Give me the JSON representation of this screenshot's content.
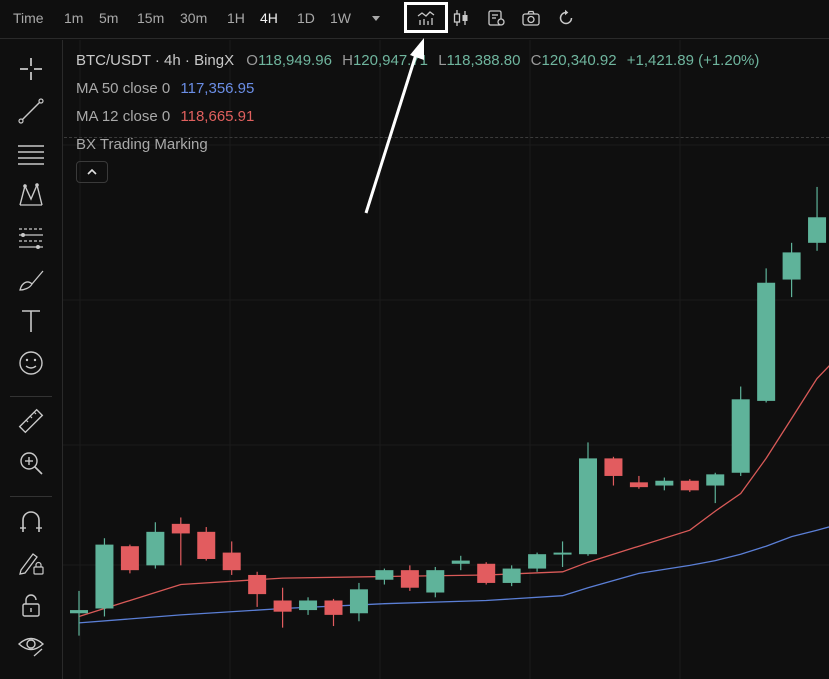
{
  "toolbar": {
    "timeframes": [
      "Time",
      "1m",
      "5m",
      "15m",
      "30m",
      "1H",
      "4H",
      "1D",
      "1W"
    ],
    "active_timeframe": "4H"
  },
  "legend": {
    "symbol": "BTC/USDT · 4h · BingX",
    "o_label": "O",
    "o_value": "118,949.96",
    "h_label": "H",
    "h_value": "120,947.71",
    "l_label": "L",
    "l_value": "118,388.80",
    "c_label": "C",
    "c_value": "120,340.92",
    "change": "+1,421.89 (+1.20%)",
    "ma50_label": "MA 50 close 0",
    "ma50_value": "117,356.95",
    "ma12_label": "MA 12 close 0",
    "ma12_value": "118,665.91",
    "indicator_label": "BX Trading Marking"
  },
  "colors": {
    "background": "#0f0f0f",
    "up": "#5fb39a",
    "down": "#e25c5f",
    "ma50": "#5b7fd6",
    "ma12": "#d95a58",
    "value_text": "#6fb59e"
  },
  "chart_data": {
    "type": "candlestick",
    "interval": "4h",
    "candles": [
      {
        "o": 116580,
        "h": 116720,
        "l": 116440,
        "c": 116600
      },
      {
        "o": 116610,
        "h": 117050,
        "l": 116560,
        "c": 117010
      },
      {
        "o": 117000,
        "h": 117010,
        "l": 116830,
        "c": 116850
      },
      {
        "o": 116880,
        "h": 117150,
        "l": 116860,
        "c": 117090
      },
      {
        "o": 117140,
        "h": 117180,
        "l": 116880,
        "c": 117080
      },
      {
        "o": 117090,
        "h": 117120,
        "l": 116910,
        "c": 116920
      },
      {
        "o": 116960,
        "h": 117030,
        "l": 116820,
        "c": 116850
      },
      {
        "o": 116820,
        "h": 116840,
        "l": 116620,
        "c": 116700
      },
      {
        "o": 116660,
        "h": 116740,
        "l": 116490,
        "c": 116590
      },
      {
        "o": 116600,
        "h": 116680,
        "l": 116570,
        "c": 116660
      },
      {
        "o": 116660,
        "h": 116670,
        "l": 116500,
        "c": 116570
      },
      {
        "o": 116580,
        "h": 116770,
        "l": 116530,
        "c": 116730
      },
      {
        "o": 116790,
        "h": 116860,
        "l": 116760,
        "c": 116850
      },
      {
        "o": 116850,
        "h": 116880,
        "l": 116720,
        "c": 116740
      },
      {
        "o": 116710,
        "h": 116870,
        "l": 116680,
        "c": 116850
      },
      {
        "o": 116890,
        "h": 116940,
        "l": 116850,
        "c": 116910
      },
      {
        "o": 116890,
        "h": 116900,
        "l": 116760,
        "c": 116770
      },
      {
        "o": 116770,
        "h": 116880,
        "l": 116750,
        "c": 116860
      },
      {
        "o": 116860,
        "h": 116960,
        "l": 116840,
        "c": 116950
      },
      {
        "o": 116950,
        "h": 117030,
        "l": 116870,
        "c": 116960
      },
      {
        "o": 116950,
        "h": 117650,
        "l": 116940,
        "c": 117550
      },
      {
        "o": 117550,
        "h": 117560,
        "l": 117380,
        "c": 117440
      },
      {
        "o": 117400,
        "h": 117440,
        "l": 117360,
        "c": 117370
      },
      {
        "o": 117380,
        "h": 117430,
        "l": 117350,
        "c": 117410
      },
      {
        "o": 117410,
        "h": 117420,
        "l": 117340,
        "c": 117350
      },
      {
        "o": 117380,
        "h": 117460,
        "l": 117270,
        "c": 117450
      },
      {
        "o": 117460,
        "h": 118000,
        "l": 117440,
        "c": 117920
      },
      {
        "o": 117910,
        "h": 118740,
        "l": 117900,
        "c": 118650
      },
      {
        "o": 118670,
        "h": 118900,
        "l": 118560,
        "c": 118840
      },
      {
        "o": 118900,
        "h": 119250,
        "l": 118850,
        "c": 119060
      }
    ],
    "ma12": [
      [
        0,
        116560
      ],
      [
        4,
        116760
      ],
      [
        8,
        116800
      ],
      [
        12,
        116810
      ],
      [
        16,
        116820
      ],
      [
        19,
        116840
      ],
      [
        20,
        116900
      ],
      [
        22,
        117000
      ],
      [
        24,
        117100
      ],
      [
        25,
        117220
      ],
      [
        26,
        117330
      ],
      [
        27,
        117550
      ],
      [
        28,
        117800
      ],
      [
        29,
        118050
      ],
      [
        29.9,
        118200
      ]
    ],
    "ma50": [
      [
        0,
        116520
      ],
      [
        4,
        116570
      ],
      [
        8,
        116610
      ],
      [
        12,
        116640
      ],
      [
        16,
        116660
      ],
      [
        19,
        116690
      ],
      [
        20,
        116740
      ],
      [
        22,
        116830
      ],
      [
        24,
        116880
      ],
      [
        25,
        116910
      ],
      [
        26,
        116950
      ],
      [
        27,
        117000
      ],
      [
        28,
        117060
      ],
      [
        29,
        117100
      ],
      [
        29.9,
        117140
      ]
    ],
    "ylim": [
      116350,
      119450
    ]
  }
}
